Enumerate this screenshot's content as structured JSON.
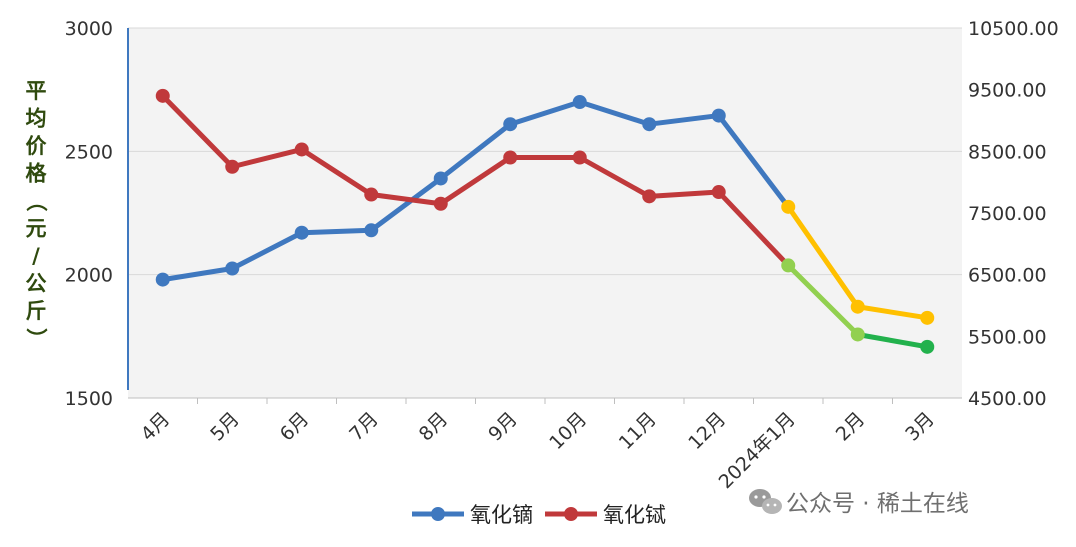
{
  "chart_data": {
    "type": "line",
    "categories": [
      "4月",
      "5月",
      "6月",
      "7月",
      "8月",
      "9月",
      "10月",
      "11月",
      "12月",
      "2024年1月",
      "2月",
      "3月"
    ],
    "ylabel": "平均价格（元/公斤）",
    "ylim_left": [
      1500,
      3000
    ],
    "ylim_right": [
      4500,
      10500
    ],
    "left_ticks": [
      "3000",
      "2500",
      "2000",
      "1500"
    ],
    "right_ticks": [
      "10500.00",
      "9500.00",
      "8500.00",
      "7500.00",
      "6500.00",
      "5500.00",
      "4500.00"
    ],
    "grid": "horizontal",
    "legend_position": "bottom",
    "series": [
      {
        "name": "氧化镝",
        "axis": "left",
        "color": "#3f78bf",
        "continuation_color": "#ffc000",
        "values": [
          1980,
          2025,
          2170,
          2180,
          2390,
          2610,
          2700,
          2610,
          2645,
          2275,
          1870,
          1825
        ]
      },
      {
        "name": "氧化铽",
        "axis": "right",
        "color": "#c0393b",
        "continuation_colors": [
          "#92d050",
          "#22b14c"
        ],
        "values": [
          9400,
          8250,
          8530,
          7800,
          7650,
          8400,
          8400,
          7770,
          7840,
          6650,
          5530,
          5330
        ]
      }
    ]
  },
  "watermark": "公众号 · 稀土在线"
}
